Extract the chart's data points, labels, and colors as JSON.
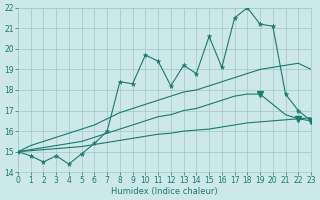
{
  "x_values": [
    0,
    1,
    2,
    3,
    4,
    5,
    6,
    7,
    8,
    9,
    10,
    11,
    12,
    13,
    14,
    15,
    16,
    17,
    18,
    19,
    20,
    21,
    22,
    23
  ],
  "main_line": [
    15.0,
    14.8,
    14.5,
    14.8,
    14.4,
    14.9,
    15.4,
    16.0,
    18.4,
    18.3,
    19.7,
    19.4,
    18.2,
    19.2,
    18.8,
    20.6,
    19.1,
    21.5,
    22.0,
    21.2,
    21.1,
    17.8,
    17.0,
    16.5
  ],
  "upper_line": [
    15.0,
    15.3,
    15.5,
    15.7,
    15.9,
    16.1,
    16.3,
    16.6,
    16.9,
    17.1,
    17.3,
    17.5,
    17.7,
    17.9,
    18.0,
    18.2,
    18.4,
    18.6,
    18.8,
    19.0,
    19.1,
    19.2,
    19.3,
    19.0
  ],
  "mid_line": [
    15.0,
    15.1,
    15.2,
    15.3,
    15.4,
    15.5,
    15.7,
    15.9,
    16.1,
    16.3,
    16.5,
    16.7,
    16.8,
    17.0,
    17.1,
    17.3,
    17.5,
    17.7,
    17.8,
    17.8,
    17.3,
    16.8,
    16.6,
    16.5
  ],
  "lower_line": [
    15.0,
    15.05,
    15.1,
    15.15,
    15.2,
    15.25,
    15.35,
    15.45,
    15.55,
    15.65,
    15.75,
    15.85,
    15.9,
    16.0,
    16.05,
    16.1,
    16.2,
    16.3,
    16.4,
    16.45,
    16.5,
    16.55,
    16.6,
    16.65
  ],
  "marker_indices_main": [
    0,
    1,
    2,
    3,
    4,
    5,
    6,
    7,
    8,
    9,
    10,
    11,
    12,
    13,
    14,
    15,
    16,
    17,
    18,
    19,
    20,
    21,
    22,
    23
  ],
  "marker_indices_mid": [
    19
  ],
  "marker_indices_upper": [
    22,
    23
  ],
  "line_color": "#1a7a6e",
  "bg_color": "#cde8e8",
  "grid_color": "#a8cccc",
  "xlabel": "Humidex (Indice chaleur)",
  "ylim": [
    14,
    22
  ],
  "xlim": [
    0,
    23
  ],
  "yticks": [
    14,
    15,
    16,
    17,
    18,
    19,
    20,
    21,
    22
  ],
  "xticks": [
    0,
    1,
    2,
    3,
    4,
    5,
    6,
    7,
    8,
    9,
    10,
    11,
    12,
    13,
    14,
    15,
    16,
    17,
    18,
    19,
    20,
    21,
    22,
    23
  ]
}
